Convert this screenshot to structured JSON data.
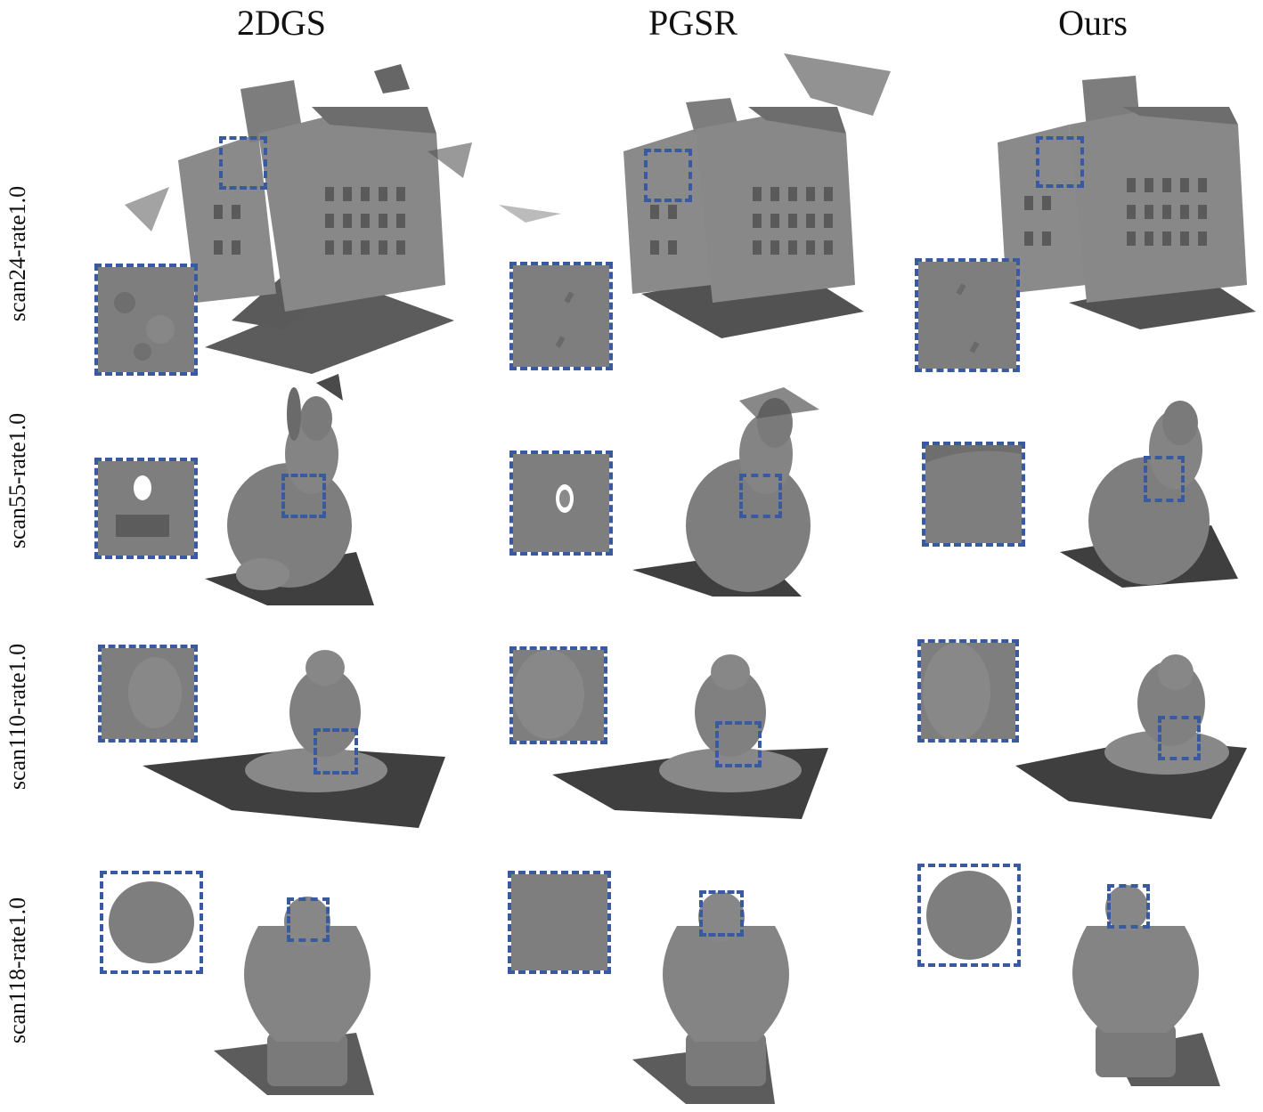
{
  "columns": [
    {
      "title": "2DGS"
    },
    {
      "title": "PGSR"
    },
    {
      "title": "Ours"
    }
  ],
  "rows": [
    {
      "label": "scan24-rate1.0",
      "subject": "building"
    },
    {
      "label": "scan55-rate1.0",
      "subject": "rabbit"
    },
    {
      "label": "scan110-rate1.0",
      "subject": "meditating-figure"
    },
    {
      "label": "scan118-rate1.0",
      "subject": "cherub-in-hands"
    }
  ],
  "colors": {
    "mesh": "#7a7a7a",
    "mesh_dark": "#555555",
    "ground": "#3e3e3e",
    "zoom_box": "#3a5aa0"
  }
}
